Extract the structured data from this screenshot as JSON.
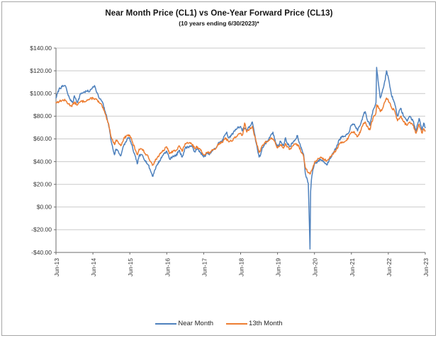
{
  "figure": {
    "border_color": "#A6A6A6",
    "background": "#FFFFFF"
  },
  "chart_data": {
    "type": "line",
    "title": "Near Month Price (CL1) vs One-Year Forward Price (CL13)",
    "subtitle": "(10 years ending 6/30/2023)*",
    "grid": "horizontal-on",
    "legend": {
      "position": "bottom-center"
    },
    "colors": {
      "gridline": "#C9C9C9",
      "axis": "#6B6B6B",
      "tick_text": "#333333"
    },
    "x_axis": {
      "unit": "months since Jun-2013",
      "min": 0,
      "max": 120,
      "tick_positions": [
        0,
        12,
        24,
        36,
        48,
        60,
        72,
        84,
        96,
        108,
        120
      ],
      "tick_labels": [
        "Jun-13",
        "Jun-14",
        "Jun-15",
        "Jun-16",
        "Jun-17",
        "Jun-18",
        "Jun-19",
        "Jun-20",
        "Jun-21",
        "Jun-22",
        "Jun-23"
      ]
    },
    "y_axis": {
      "unit": "USD per barrel",
      "min": -40,
      "max": 140,
      "tick_values": [
        140,
        120,
        100,
        80,
        60,
        40,
        20,
        0,
        -20,
        -40
      ],
      "tick_labels": [
        "$140.00",
        "$120.00",
        "$100.00",
        "$80.00",
        "$60.00",
        "$40.00",
        "$20.00",
        "$0.00",
        "-$20.00",
        "-$40.00"
      ]
    },
    "series": [
      {
        "name": "Near Month",
        "color": "#4E81BD",
        "points": [
          [
            0,
            96
          ],
          [
            1,
            104
          ],
          [
            2,
            106
          ],
          [
            3,
            107
          ],
          [
            3.5,
            103
          ],
          [
            4,
            98
          ],
          [
            5,
            93
          ],
          [
            5.5,
            92
          ],
          [
            6,
            98
          ],
          [
            7,
            92
          ],
          [
            8,
            100
          ],
          [
            9,
            101
          ],
          [
            10,
            102
          ],
          [
            11,
            102
          ],
          [
            12,
            106
          ],
          [
            12.5,
            107
          ],
          [
            13,
            103
          ],
          [
            14,
            96
          ],
          [
            15,
            93
          ],
          [
            16,
            84
          ],
          [
            17,
            74
          ],
          [
            17.5,
            66
          ],
          [
            18,
            57
          ],
          [
            19,
            46
          ],
          [
            19.5,
            51
          ],
          [
            20,
            50
          ],
          [
            21,
            45
          ],
          [
            22,
            54
          ],
          [
            23,
            59
          ],
          [
            23.5,
            61
          ],
          [
            24,
            60
          ],
          [
            25,
            51
          ],
          [
            26,
            42
          ],
          [
            26.4,
            38
          ],
          [
            27,
            45
          ],
          [
            28,
            46
          ],
          [
            29,
            41
          ],
          [
            30,
            37
          ],
          [
            31,
            30
          ],
          [
            31.5,
            27
          ],
          [
            32,
            32
          ],
          [
            33,
            38
          ],
          [
            34,
            42
          ],
          [
            35,
            47
          ],
          [
            36,
            49
          ],
          [
            37,
            42
          ],
          [
            38,
            45
          ],
          [
            39,
            45
          ],
          [
            40,
            50
          ],
          [
            41,
            44
          ],
          [
            42,
            52
          ],
          [
            43,
            53
          ],
          [
            44,
            54
          ],
          [
            45,
            49
          ],
          [
            46,
            51
          ],
          [
            47,
            48
          ],
          [
            48,
            44
          ],
          [
            49,
            47
          ],
          [
            50,
            47
          ],
          [
            51,
            50
          ],
          [
            52,
            52
          ],
          [
            53,
            57
          ],
          [
            54,
            58
          ],
          [
            55,
            64
          ],
          [
            55.5,
            66
          ],
          [
            56,
            61
          ],
          [
            57,
            63
          ],
          [
            58,
            67
          ],
          [
            59,
            70
          ],
          [
            60,
            71
          ],
          [
            60.5,
            67
          ],
          [
            61,
            70
          ],
          [
            62,
            68
          ],
          [
            63,
            71
          ],
          [
            63.8,
            75
          ],
          [
            64,
            72
          ],
          [
            65,
            57
          ],
          [
            66,
            44
          ],
          [
            66.5,
            46
          ],
          [
            67,
            52
          ],
          [
            68,
            56
          ],
          [
            69,
            59
          ],
          [
            70,
            64
          ],
          [
            70.5,
            66
          ],
          [
            71,
            60
          ],
          [
            72,
            53
          ],
          [
            73,
            58
          ],
          [
            74,
            54
          ],
          [
            74.6,
            61
          ],
          [
            75,
            57
          ],
          [
            76,
            53
          ],
          [
            77,
            57
          ],
          [
            78,
            60
          ],
          [
            78.5,
            63
          ],
          [
            79,
            57
          ],
          [
            80,
            50
          ],
          [
            80.5,
            46
          ],
          [
            81,
            30
          ],
          [
            82,
            21
          ],
          [
            82.55,
            -37
          ],
          [
            82.75,
            14
          ],
          [
            83,
            24
          ],
          [
            83.5,
            33
          ],
          [
            84,
            38
          ],
          [
            85,
            40
          ],
          [
            86,
            42
          ],
          [
            87,
            40
          ],
          [
            88,
            37
          ],
          [
            89,
            43
          ],
          [
            90,
            47
          ],
          [
            91,
            52
          ],
          [
            92,
            59
          ],
          [
            93,
            62
          ],
          [
            94,
            62
          ],
          [
            95,
            65
          ],
          [
            96,
            72
          ],
          [
            97,
            73
          ],
          [
            98,
            67
          ],
          [
            99,
            73
          ],
          [
            100,
            82
          ],
          [
            100.5,
            84
          ],
          [
            101,
            78
          ],
          [
            102,
            72
          ],
          [
            103,
            85
          ],
          [
            104,
            92
          ],
          [
            104.2,
            123
          ],
          [
            105,
            104
          ],
          [
            105.4,
            96
          ],
          [
            106,
            101
          ],
          [
            107,
            112
          ],
          [
            107.4,
            120
          ],
          [
            108,
            114
          ],
          [
            109,
            99
          ],
          [
            110,
            92
          ],
          [
            111,
            80
          ],
          [
            112,
            87
          ],
          [
            113,
            80
          ],
          [
            114,
            76
          ],
          [
            115,
            80
          ],
          [
            116,
            76
          ],
          [
            117,
            67
          ],
          [
            118,
            78
          ],
          [
            119,
            68
          ],
          [
            119.5,
            74
          ],
          [
            120,
            70
          ]
        ]
      },
      {
        "name": "13th Month",
        "color": "#ED7D31",
        "points": [
          [
            0,
            92
          ],
          [
            1,
            93
          ],
          [
            2,
            94
          ],
          [
            3,
            94
          ],
          [
            4,
            91
          ],
          [
            5,
            89
          ],
          [
            6,
            92
          ],
          [
            7,
            90
          ],
          [
            8,
            93
          ],
          [
            9,
            93
          ],
          [
            10,
            94
          ],
          [
            11,
            95
          ],
          [
            12,
            96
          ],
          [
            13,
            95
          ],
          [
            14,
            92
          ],
          [
            15,
            89
          ],
          [
            16,
            82
          ],
          [
            17,
            74
          ],
          [
            17.5,
            68
          ],
          [
            18,
            61
          ],
          [
            19,
            55
          ],
          [
            19.5,
            59
          ],
          [
            20,
            58
          ],
          [
            21,
            54
          ],
          [
            22,
            60
          ],
          [
            23,
            63
          ],
          [
            24,
            63
          ],
          [
            25,
            56
          ],
          [
            26,
            49
          ],
          [
            26.4,
            46
          ],
          [
            27,
            51
          ],
          [
            28,
            51
          ],
          [
            29,
            47
          ],
          [
            30,
            44
          ],
          [
            31,
            39
          ],
          [
            31.5,
            37
          ],
          [
            32,
            40
          ],
          [
            33,
            44
          ],
          [
            34,
            47
          ],
          [
            35,
            50
          ],
          [
            36,
            53
          ],
          [
            37,
            47
          ],
          [
            38,
            49
          ],
          [
            39,
            50
          ],
          [
            40,
            54
          ],
          [
            41,
            49
          ],
          [
            42,
            56
          ],
          [
            43,
            56
          ],
          [
            44,
            56
          ],
          [
            45,
            52
          ],
          [
            46,
            53
          ],
          [
            47,
            50
          ],
          [
            48,
            46
          ],
          [
            49,
            48
          ],
          [
            50,
            48
          ],
          [
            51,
            50
          ],
          [
            52,
            52
          ],
          [
            53,
            56
          ],
          [
            54,
            57
          ],
          [
            55,
            61
          ],
          [
            56,
            58
          ],
          [
            57,
            58
          ],
          [
            58,
            61
          ],
          [
            59,
            63
          ],
          [
            60,
            65
          ],
          [
            60.5,
            63
          ],
          [
            61,
            68
          ],
          [
            61.3,
            74
          ],
          [
            62,
            66
          ],
          [
            63,
            69
          ],
          [
            63.8,
            71
          ],
          [
            64,
            69
          ],
          [
            65,
            58
          ],
          [
            66,
            48
          ],
          [
            66.5,
            50
          ],
          [
            67,
            54
          ],
          [
            68,
            57
          ],
          [
            69,
            58
          ],
          [
            70,
            61
          ],
          [
            71,
            58
          ],
          [
            72,
            52
          ],
          [
            73,
            55
          ],
          [
            74,
            52
          ],
          [
            74.6,
            56
          ],
          [
            75,
            53
          ],
          [
            76,
            51
          ],
          [
            77,
            54
          ],
          [
            78,
            56
          ],
          [
            79,
            53
          ],
          [
            80,
            47
          ],
          [
            80.5,
            44
          ],
          [
            81,
            35
          ],
          [
            82,
            30
          ],
          [
            82.55,
            29
          ],
          [
            83,
            32
          ],
          [
            83.5,
            35
          ],
          [
            84,
            39
          ],
          [
            85,
            42
          ],
          [
            86,
            44
          ],
          [
            87,
            42
          ],
          [
            88,
            41
          ],
          [
            89,
            44
          ],
          [
            90,
            47
          ],
          [
            91,
            50
          ],
          [
            92,
            55
          ],
          [
            93,
            57
          ],
          [
            94,
            58
          ],
          [
            95,
            61
          ],
          [
            96,
            66
          ],
          [
            97,
            66
          ],
          [
            98,
            62
          ],
          [
            99,
            67
          ],
          [
            100,
            74
          ],
          [
            100.5,
            75
          ],
          [
            101,
            71
          ],
          [
            102,
            68
          ],
          [
            103,
            78
          ],
          [
            104,
            83
          ],
          [
            104.2,
            90
          ],
          [
            105,
            87
          ],
          [
            105.4,
            84
          ],
          [
            106,
            86
          ],
          [
            107,
            93
          ],
          [
            107.4,
            96
          ],
          [
            108,
            94
          ],
          [
            109,
            88
          ],
          [
            110,
            85
          ],
          [
            111,
            76
          ],
          [
            112,
            80
          ],
          [
            113,
            75
          ],
          [
            114,
            72
          ],
          [
            115,
            75
          ],
          [
            116,
            72
          ],
          [
            117,
            65
          ],
          [
            118,
            73
          ],
          [
            119,
            65
          ],
          [
            119.5,
            69
          ],
          [
            120,
            67
          ]
        ]
      }
    ]
  }
}
